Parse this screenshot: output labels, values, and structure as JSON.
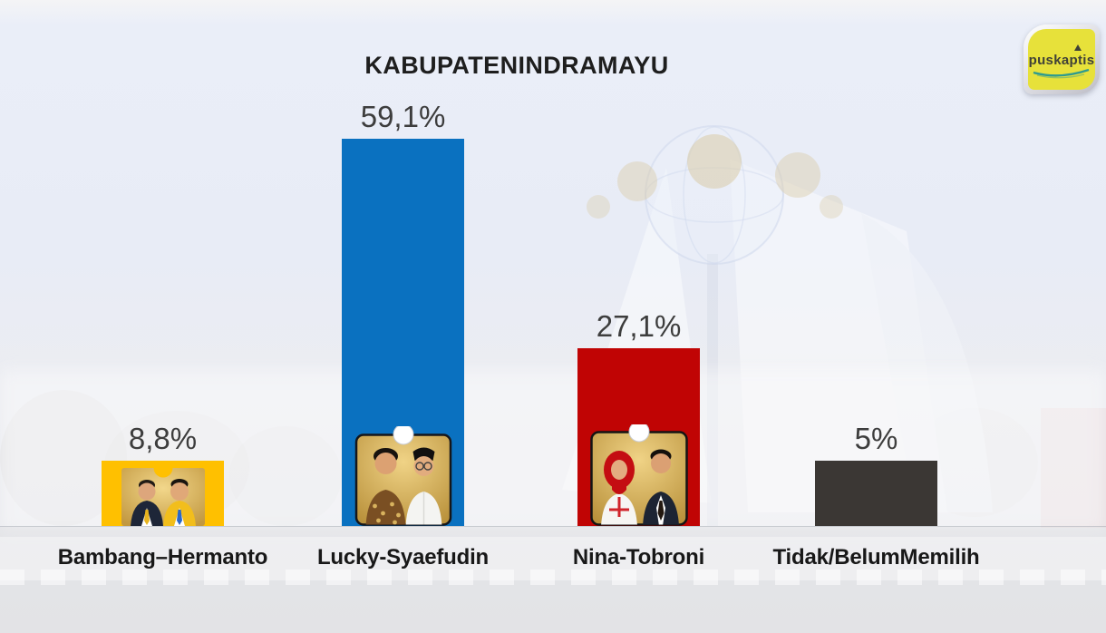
{
  "header": {
    "title": "KABUPATENINDRAMAYU"
  },
  "logo": {
    "text": "puskaptis",
    "bg_color": "#E7E13A",
    "swoosh_color": "#2E9B8F",
    "frame_color": "#C9C9D2"
  },
  "chart_data": {
    "type": "bar",
    "title": "KABUPATENINDRAMAYU",
    "categories": [
      "Bambang–Hermanto",
      "Lucky-Syaefudin",
      "Nina-Tobroni",
      "Tidak/BelumMemilih"
    ],
    "values": [
      8.8,
      59.1,
      27.1,
      5
    ],
    "value_labels": [
      "8,8%",
      "59,1%",
      "27,1%",
      "5%"
    ],
    "bar_colors": [
      "#FFC000",
      "#0A71C0",
      "#C00404",
      "#3B3734"
    ],
    "value_label_position": "above",
    "grid": false,
    "legend": false,
    "ylim": [
      0,
      62
    ],
    "photo_cards": [
      "bambang-hermanto-photo",
      "lucky-syaefudin-photo",
      "nina-tobroni-photo",
      null
    ]
  }
}
